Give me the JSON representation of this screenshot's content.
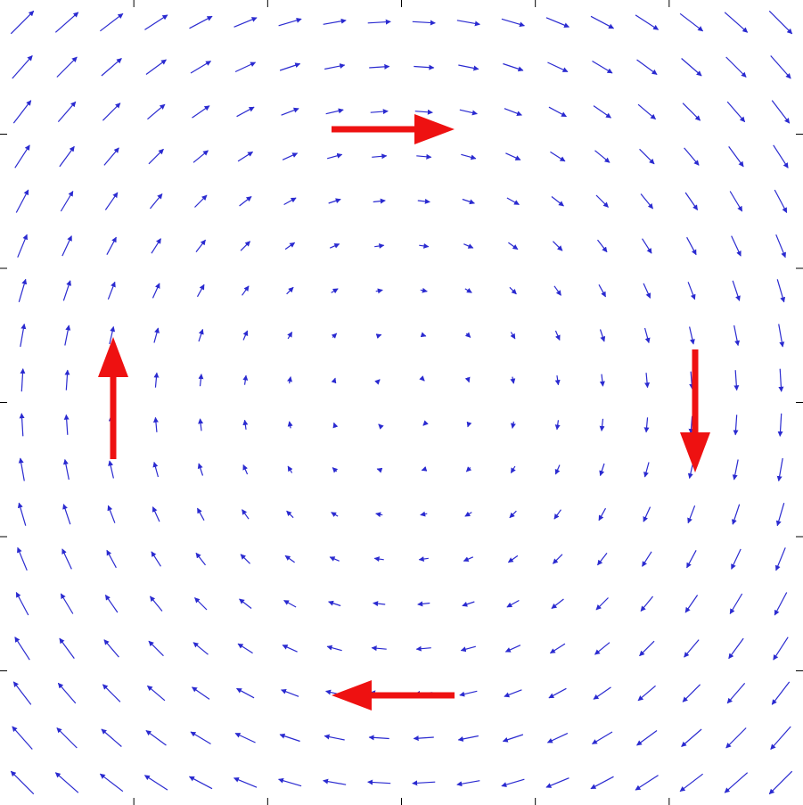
{
  "chart_data": {
    "type": "quiver",
    "color": "#2a2ad0",
    "xlim": [
      -9,
      9
    ],
    "ylim": [
      -9,
      9
    ],
    "xticks": [
      -6,
      -3,
      0,
      3,
      6
    ],
    "yticks": [
      -6,
      -3,
      0,
      3,
      6
    ],
    "x": [
      -8.5,
      -7.5,
      -6.5,
      -5.5,
      -4.5,
      -3.5,
      -2.5,
      -1.5,
      -0.5,
      0.5,
      1.5,
      2.5,
      3.5,
      4.5,
      5.5,
      6.5,
      7.5,
      8.5
    ],
    "y": [
      -8.5,
      -7.5,
      -6.5,
      -5.5,
      -4.5,
      -3.5,
      -2.5,
      -1.5,
      -0.5,
      0.5,
      1.5,
      2.5,
      3.5,
      4.5,
      5.5,
      6.5,
      7.5,
      8.5
    ],
    "u": [
      [
        -8.5,
        -8.5,
        -8.5,
        -8.5,
        -8.5,
        -8.5,
        -8.5,
        -8.5,
        -8.5,
        -8.5,
        -8.5,
        -8.5,
        -8.5,
        -8.5,
        -8.5,
        -8.5,
        -8.5,
        -8.5
      ],
      [
        -7.5,
        -7.5,
        -7.5,
        -7.5,
        -7.5,
        -7.5,
        -7.5,
        -7.5,
        -7.5,
        -7.5,
        -7.5,
        -7.5,
        -7.5,
        -7.5,
        -7.5,
        -7.5,
        -7.5,
        -7.5
      ],
      [
        -6.5,
        -6.5,
        -6.5,
        -6.5,
        -6.5,
        -6.5,
        -6.5,
        -6.5,
        -6.5,
        -6.5,
        -6.5,
        -6.5,
        -6.5,
        -6.5,
        -6.5,
        -6.5,
        -6.5,
        -6.5
      ],
      [
        -5.5,
        -5.5,
        -5.5,
        -5.5,
        -5.5,
        -5.5,
        -5.5,
        -5.5,
        -5.5,
        -5.5,
        -5.5,
        -5.5,
        -5.5,
        -5.5,
        -5.5,
        -5.5,
        -5.5,
        -5.5
      ],
      [
        -4.5,
        -4.5,
        -4.5,
        -4.5,
        -4.5,
        -4.5,
        -4.5,
        -4.5,
        -4.5,
        -4.5,
        -4.5,
        -4.5,
        -4.5,
        -4.5,
        -4.5,
        -4.5,
        -4.5,
        -4.5
      ],
      [
        -3.5,
        -3.5,
        -3.5,
        -3.5,
        -3.5,
        -3.5,
        -3.5,
        -3.5,
        -3.5,
        -3.5,
        -3.5,
        -3.5,
        -3.5,
        -3.5,
        -3.5,
        -3.5,
        -3.5,
        -3.5
      ],
      [
        -2.5,
        -2.5,
        -2.5,
        -2.5,
        -2.5,
        -2.5,
        -2.5,
        -2.5,
        -2.5,
        -2.5,
        -2.5,
        -2.5,
        -2.5,
        -2.5,
        -2.5,
        -2.5,
        -2.5,
        -2.5
      ],
      [
        -1.5,
        -1.5,
        -1.5,
        -1.5,
        -1.5,
        -1.5,
        -1.5,
        -1.5,
        -1.5,
        -1.5,
        -1.5,
        -1.5,
        -1.5,
        -1.5,
        -1.5,
        -1.5,
        -1.5,
        -1.5
      ],
      [
        -0.5,
        -0.5,
        -0.5,
        -0.5,
        -0.5,
        -0.5,
        -0.5,
        -0.5,
        -0.5,
        -0.5,
        -0.5,
        -0.5,
        -0.5,
        -0.5,
        -0.5,
        -0.5,
        -0.5,
        -0.5
      ],
      [
        0.5,
        0.5,
        0.5,
        0.5,
        0.5,
        0.5,
        0.5,
        0.5,
        0.5,
        0.5,
        0.5,
        0.5,
        0.5,
        0.5,
        0.5,
        0.5,
        0.5,
        0.5
      ],
      [
        1.5,
        1.5,
        1.5,
        1.5,
        1.5,
        1.5,
        1.5,
        1.5,
        1.5,
        1.5,
        1.5,
        1.5,
        1.5,
        1.5,
        1.5,
        1.5,
        1.5,
        1.5
      ],
      [
        2.5,
        2.5,
        2.5,
        2.5,
        2.5,
        2.5,
        2.5,
        2.5,
        2.5,
        2.5,
        2.5,
        2.5,
        2.5,
        2.5,
        2.5,
        2.5,
        2.5,
        2.5
      ],
      [
        3.5,
        3.5,
        3.5,
        3.5,
        3.5,
        3.5,
        3.5,
        3.5,
        3.5,
        3.5,
        3.5,
        3.5,
        3.5,
        3.5,
        3.5,
        3.5,
        3.5,
        3.5
      ],
      [
        4.5,
        4.5,
        4.5,
        4.5,
        4.5,
        4.5,
        4.5,
        4.5,
        4.5,
        4.5,
        4.5,
        4.5,
        4.5,
        4.5,
        4.5,
        4.5,
        4.5,
        4.5
      ],
      [
        5.5,
        5.5,
        5.5,
        5.5,
        5.5,
        5.5,
        5.5,
        5.5,
        5.5,
        5.5,
        5.5,
        5.5,
        5.5,
        5.5,
        5.5,
        5.5,
        5.5,
        5.5
      ],
      [
        6.5,
        6.5,
        6.5,
        6.5,
        6.5,
        6.5,
        6.5,
        6.5,
        6.5,
        6.5,
        6.5,
        6.5,
        6.5,
        6.5,
        6.5,
        6.5,
        6.5,
        6.5
      ],
      [
        7.5,
        7.5,
        7.5,
        7.5,
        7.5,
        7.5,
        7.5,
        7.5,
        7.5,
        7.5,
        7.5,
        7.5,
        7.5,
        7.5,
        7.5,
        7.5,
        7.5,
        7.5
      ],
      [
        8.5,
        8.5,
        8.5,
        8.5,
        8.5,
        8.5,
        8.5,
        8.5,
        8.5,
        8.5,
        8.5,
        8.5,
        8.5,
        8.5,
        8.5,
        8.5,
        8.5,
        8.5
      ]
    ],
    "v": [
      [
        8.5,
        7.5,
        6.5,
        5.5,
        4.5,
        3.5,
        2.5,
        1.5,
        0.5,
        -0.5,
        -1.5,
        -2.5,
        -3.5,
        -4.5,
        -5.5,
        -6.5,
        -7.5,
        -8.5
      ],
      [
        8.5,
        7.5,
        6.5,
        5.5,
        4.5,
        3.5,
        2.5,
        1.5,
        0.5,
        -0.5,
        -1.5,
        -2.5,
        -3.5,
        -4.5,
        -5.5,
        -6.5,
        -7.5,
        -8.5
      ],
      [
        8.5,
        7.5,
        6.5,
        5.5,
        4.5,
        3.5,
        2.5,
        1.5,
        0.5,
        -0.5,
        -1.5,
        -2.5,
        -3.5,
        -4.5,
        -5.5,
        -6.5,
        -7.5,
        -8.5
      ],
      [
        8.5,
        7.5,
        6.5,
        5.5,
        4.5,
        3.5,
        2.5,
        1.5,
        0.5,
        -0.5,
        -1.5,
        -2.5,
        -3.5,
        -4.5,
        -5.5,
        -6.5,
        -7.5,
        -8.5
      ],
      [
        8.5,
        7.5,
        6.5,
        5.5,
        4.5,
        3.5,
        2.5,
        1.5,
        0.5,
        -0.5,
        -1.5,
        -2.5,
        -3.5,
        -4.5,
        -5.5,
        -6.5,
        -7.5,
        -8.5
      ],
      [
        8.5,
        7.5,
        6.5,
        5.5,
        4.5,
        3.5,
        2.5,
        1.5,
        0.5,
        -0.5,
        -1.5,
        -2.5,
        -3.5,
        -4.5,
        -5.5,
        -6.5,
        -7.5,
        -8.5
      ],
      [
        8.5,
        7.5,
        6.5,
        5.5,
        4.5,
        3.5,
        2.5,
        1.5,
        0.5,
        -0.5,
        -1.5,
        -2.5,
        -3.5,
        -4.5,
        -5.5,
        -6.5,
        -7.5,
        -8.5
      ],
      [
        8.5,
        7.5,
        6.5,
        5.5,
        4.5,
        3.5,
        2.5,
        1.5,
        0.5,
        -0.5,
        -1.5,
        -2.5,
        -3.5,
        -4.5,
        -5.5,
        -6.5,
        -7.5,
        -8.5
      ],
      [
        8.5,
        7.5,
        6.5,
        5.5,
        4.5,
        3.5,
        2.5,
        1.5,
        0.5,
        -0.5,
        -1.5,
        -2.5,
        -3.5,
        -4.5,
        -5.5,
        -6.5,
        -7.5,
        -8.5
      ],
      [
        8.5,
        7.5,
        6.5,
        5.5,
        4.5,
        3.5,
        2.5,
        1.5,
        0.5,
        -0.5,
        -1.5,
        -2.5,
        -3.5,
        -4.5,
        -5.5,
        -6.5,
        -7.5,
        -8.5
      ],
      [
        8.5,
        7.5,
        6.5,
        5.5,
        4.5,
        3.5,
        2.5,
        1.5,
        0.5,
        -0.5,
        -1.5,
        -2.5,
        -3.5,
        -4.5,
        -5.5,
        -6.5,
        -7.5,
        -8.5
      ],
      [
        8.5,
        7.5,
        6.5,
        5.5,
        4.5,
        3.5,
        2.5,
        1.5,
        0.5,
        -0.5,
        -1.5,
        -2.5,
        -3.5,
        -4.5,
        -5.5,
        -6.5,
        -7.5,
        -8.5
      ],
      [
        8.5,
        7.5,
        6.5,
        5.5,
        4.5,
        3.5,
        2.5,
        1.5,
        0.5,
        -0.5,
        -1.5,
        -2.5,
        -3.5,
        -4.5,
        -5.5,
        -6.5,
        -7.5,
        -8.5
      ],
      [
        8.5,
        7.5,
        6.5,
        5.5,
        4.5,
        3.5,
        2.5,
        1.5,
        0.5,
        -0.5,
        -1.5,
        -2.5,
        -3.5,
        -4.5,
        -5.5,
        -6.5,
        -7.5,
        -8.5
      ],
      [
        8.5,
        7.5,
        6.5,
        5.5,
        4.5,
        3.5,
        2.5,
        1.5,
        0.5,
        -0.5,
        -1.5,
        -2.5,
        -3.5,
        -4.5,
        -5.5,
        -6.5,
        -7.5,
        -8.5
      ],
      [
        8.5,
        7.5,
        6.5,
        5.5,
        4.5,
        3.5,
        2.5,
        1.5,
        0.5,
        -0.5,
        -1.5,
        -2.5,
        -3.5,
        -4.5,
        -5.5,
        -6.5,
        -7.5,
        -8.5
      ],
      [
        8.5,
        7.5,
        6.5,
        5.5,
        4.5,
        3.5,
        2.5,
        1.5,
        0.5,
        -0.5,
        -1.5,
        -2.5,
        -3.5,
        -4.5,
        -5.5,
        -6.5,
        -7.5,
        -8.5
      ],
      [
        8.5,
        7.5,
        6.5,
        5.5,
        4.5,
        3.5,
        2.5,
        1.5,
        0.5,
        -0.5,
        -1.5,
        -2.5,
        -3.5,
        -4.5,
        -5.5,
        -6.5,
        -7.5,
        -8.5
      ]
    ]
  }
}
